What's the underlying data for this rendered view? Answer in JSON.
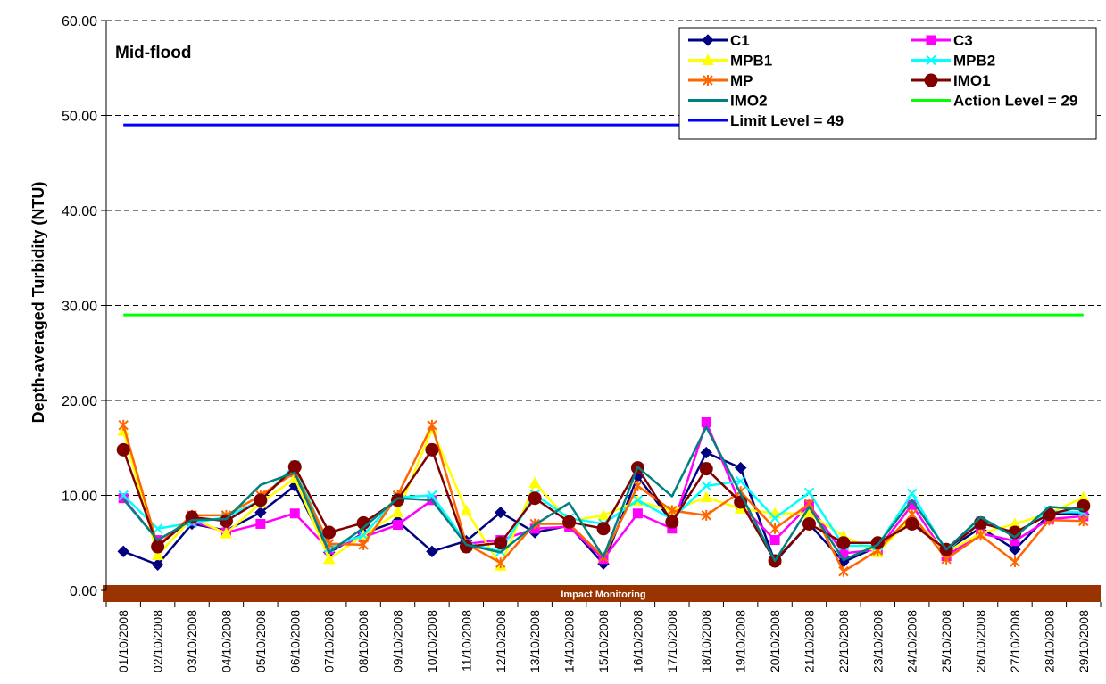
{
  "chart_data": {
    "type": "line",
    "title": "Mid-flood",
    "xlabel": "",
    "ylabel": "Depth-averaged Turbidity (NTU)",
    "ylim": [
      0,
      60
    ],
    "yticks": [
      "0.00",
      "10.00",
      "20.00",
      "30.00",
      "40.00",
      "50.00",
      "60.00"
    ],
    "grid": "horizontal dashed",
    "legend_position": "top-right",
    "band_label": "Impact Monitoring",
    "band_color": "#993300",
    "x": [
      "01/10/2008",
      "02/10/2008",
      "03/10/2008",
      "04/10/2008",
      "05/10/2008",
      "06/10/2008",
      "07/10/2008",
      "08/10/2008",
      "09/10/2008",
      "10/10/2008",
      "11/10/2008",
      "12/10/2008",
      "13/10/2008",
      "14/10/2008",
      "15/10/2008",
      "16/10/2008",
      "17/10/2008",
      "18/10/2008",
      "19/10/2008",
      "20/10/2008",
      "21/10/2008",
      "22/10/2008",
      "23/10/2008",
      "24/10/2008",
      "25/10/2008",
      "26/10/2008",
      "27/10/2008",
      "28/10/2008",
      "29/10/2008"
    ],
    "series": [
      {
        "name": "C1",
        "color": "#000080",
        "marker": "diamond",
        "values": [
          4.1,
          2.7,
          7.0,
          6.3,
          8.2,
          11.0,
          4.0,
          6.0,
          7.3,
          4.1,
          5.2,
          8.2,
          6.1,
          6.8,
          2.8,
          12.0,
          7.2,
          14.5,
          12.9,
          3.0,
          7.0,
          3.0,
          4.6,
          7.2,
          4.2,
          6.6,
          4.3,
          8.0,
          8.0
        ]
      },
      {
        "name": "C3",
        "color": "#FF00FF",
        "marker": "square",
        "values": [
          9.7,
          5.3,
          7.3,
          6.1,
          7.0,
          8.1,
          4.3,
          5.6,
          6.9,
          9.5,
          4.9,
          5.3,
          6.5,
          6.7,
          3.3,
          8.1,
          6.5,
          17.7,
          9.0,
          5.3,
          9.0,
          3.9,
          4.3,
          9.0,
          3.6,
          6.0,
          5.2,
          7.5,
          7.8
        ]
      },
      {
        "name": "MPB1",
        "color": "#FFFF00",
        "marker": "triangle",
        "values": [
          16.8,
          3.7,
          7.6,
          6.0,
          9.2,
          11.8,
          3.3,
          5.8,
          8.2,
          17.0,
          8.4,
          2.6,
          11.3,
          7.3,
          7.9,
          9.4,
          8.4,
          9.8,
          8.6,
          8.1,
          8.1,
          5.7,
          4.0,
          7.7,
          4.0,
          6.0,
          7.0,
          8.1,
          9.8
        ]
      },
      {
        "name": "MPB2",
        "color": "#00FFFF",
        "marker": "x",
        "values": [
          10.0,
          6.5,
          7.1,
          7.7,
          9.5,
          13.2,
          4.5,
          5.8,
          9.8,
          10.0,
          5.0,
          4.1,
          10.1,
          7.6,
          7.0,
          9.5,
          7.5,
          11.0,
          11.5,
          7.6,
          10.3,
          4.7,
          4.7,
          10.2,
          4.1,
          7.3,
          5.8,
          8.3,
          8.2
        ]
      },
      {
        "name": "MP",
        "color": "#FF6600",
        "marker": "star",
        "values": [
          17.4,
          4.7,
          7.9,
          7.9,
          10.0,
          12.4,
          4.9,
          4.8,
          10.0,
          17.4,
          4.9,
          2.9,
          7.0,
          7.0,
          3.5,
          11.0,
          8.4,
          7.9,
          10.4,
          6.5,
          9.1,
          2.0,
          4.2,
          8.0,
          3.3,
          5.8,
          3.0,
          7.4,
          7.3
        ]
      },
      {
        "name": "IMO1",
        "color": "#800000",
        "marker": "circle",
        "values": [
          14.8,
          4.6,
          7.7,
          7.3,
          9.5,
          13.0,
          6.1,
          7.1,
          9.5,
          14.8,
          4.6,
          5.0,
          9.7,
          7.2,
          6.5,
          12.9,
          7.2,
          12.8,
          9.3,
          3.1,
          7.0,
          5.0,
          5.0,
          7.0,
          4.3,
          7.1,
          6.1,
          8.0,
          8.9
        ]
      },
      {
        "name": "IMO2",
        "color": "#008080",
        "marker": "none",
        "values": [
          9.6,
          5.3,
          7.4,
          7.5,
          11.1,
          12.4,
          4.0,
          6.6,
          9.7,
          9.5,
          4.8,
          4.0,
          6.9,
          9.2,
          3.5,
          13.0,
          9.9,
          17.2,
          10.2,
          3.1,
          8.8,
          3.2,
          4.8,
          9.5,
          4.3,
          7.7,
          5.6,
          8.8,
          8.5
        ]
      },
      {
        "name": "Action Level = 29",
        "color": "#00FF00",
        "marker": "none",
        "constant": 29
      },
      {
        "name": "Limit Level = 49",
        "color": "#0000FF",
        "marker": "none",
        "constant": 49
      }
    ]
  }
}
